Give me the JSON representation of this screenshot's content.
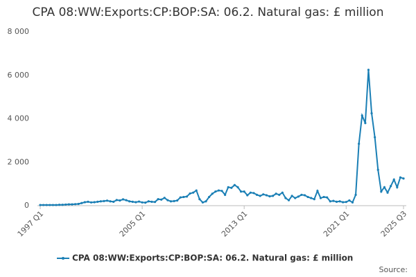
{
  "chart_data": {
    "type": "line",
    "title": "CPA 08:WW:Exports:CP:BOP:SA: 06.2. Natural gas: £ million",
    "source_label": "Source:",
    "categories": [
      "1997 Q1",
      null,
      null,
      null,
      null,
      null,
      null,
      null,
      null,
      null,
      null,
      null,
      null,
      null,
      null,
      null,
      null,
      null,
      null,
      null,
      null,
      null,
      null,
      null,
      null,
      null,
      null,
      null,
      null,
      null,
      null,
      null,
      "2005 Q1",
      null,
      null,
      null,
      null,
      null,
      null,
      null,
      null,
      null,
      null,
      null,
      null,
      null,
      null,
      null,
      null,
      null,
      null,
      null,
      null,
      null,
      null,
      null,
      null,
      null,
      null,
      null,
      null,
      null,
      null,
      null,
      "2013 Q1",
      null,
      null,
      null,
      null,
      null,
      null,
      null,
      null,
      null,
      null,
      null,
      null,
      null,
      null,
      null,
      null,
      null,
      null,
      null,
      null,
      null,
      null,
      null,
      null,
      null,
      null,
      null,
      null,
      null,
      null,
      null,
      "2021 Q1",
      null,
      null,
      null,
      null,
      null,
      null,
      null,
      null,
      null,
      null,
      null,
      null,
      null,
      null,
      null,
      null,
      null,
      "2025 Q3"
    ],
    "series": [
      {
        "name": "CPA 08:WW:Exports:CP:BOP:SA: 06.2. Natural gas: £ million",
        "color": "#1a7fb5",
        "values": [
          30,
          30,
          30,
          30,
          30,
          30,
          40,
          40,
          50,
          60,
          60,
          70,
          80,
          120,
          160,
          180,
          150,
          160,
          180,
          200,
          210,
          230,
          200,
          180,
          260,
          240,
          290,
          250,
          200,
          180,
          160,
          190,
          150,
          140,
          200,
          180,
          170,
          300,
          280,
          360,
          250,
          200,
          210,
          240,
          380,
          400,
          420,
          560,
          600,
          700,
          300,
          150,
          200,
          400,
          550,
          650,
          700,
          680,
          500,
          850,
          820,
          950,
          850,
          650,
          650,
          480,
          600,
          580,
          500,
          450,
          520,
          480,
          430,
          450,
          550,
          500,
          600,
          350,
          250,
          450,
          350,
          420,
          500,
          480,
          400,
          350,
          300,
          680,
          350,
          400,
          380,
          200,
          220,
          180,
          200,
          160,
          170,
          240,
          150,
          500,
          2850,
          4150,
          3800,
          6250,
          4250,
          3150,
          1650,
          650,
          850,
          600,
          900,
          1200,
          850,
          1300,
          1250
        ]
      }
    ],
    "ylim": [
      0,
      8000
    ],
    "yticks": [
      0,
      {
        "value": 2000,
        "label": "2 000"
      },
      {
        "value": 4000,
        "label": "4 000"
      },
      {
        "value": 6000,
        "label": "6 000"
      },
      {
        "value": 8000,
        "label": "8 000"
      }
    ],
    "legend": "bottom"
  }
}
